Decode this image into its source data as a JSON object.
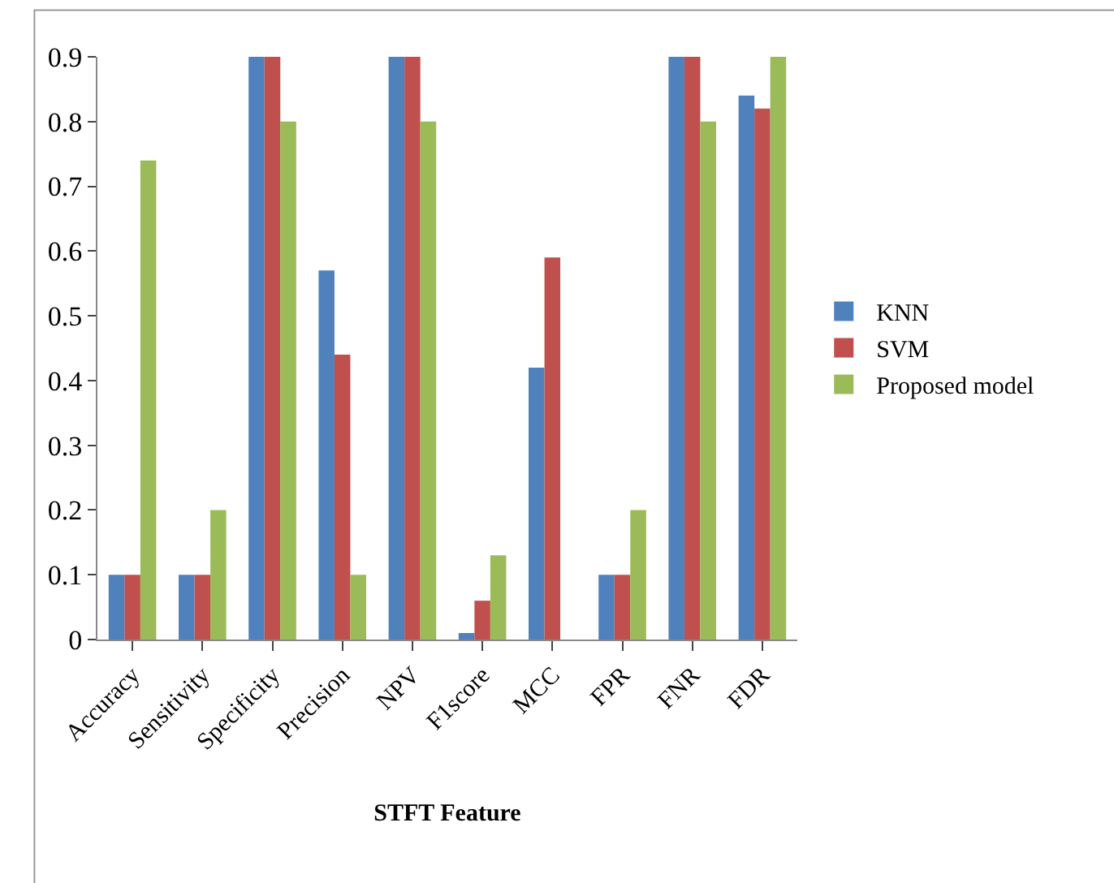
{
  "chart_data": {
    "type": "bar",
    "xlabel": "STFT Feature",
    "categories": [
      "Accuracy",
      "Sensitivity",
      "Specificity",
      "Precision",
      "NPV",
      "F1score",
      "MCC",
      "FPR",
      "FNR",
      "FDR"
    ],
    "series": [
      {
        "name": "KNN",
        "color": "#4f81bd",
        "values": [
          0.1,
          0.1,
          0.9,
          0.57,
          0.9,
          0.01,
          0.42,
          0.1,
          0.9,
          0.84
        ]
      },
      {
        "name": "SVM",
        "color": "#c0504d",
        "values": [
          0.1,
          0.1,
          0.9,
          0.44,
          0.9,
          0.06,
          0.59,
          0.1,
          0.9,
          0.82
        ]
      },
      {
        "name": "Proposed model",
        "color": "#9bbb59",
        "values": [
          0.74,
          0.2,
          0.8,
          0.1,
          0.8,
          0.13,
          0,
          0.2,
          0.8,
          0.9
        ]
      }
    ],
    "ylim": [
      0,
      0.9
    ],
    "yticks": [
      0,
      0.1,
      0.2,
      0.3,
      0.4,
      0.5,
      0.6,
      0.7,
      0.8,
      0.9
    ],
    "legend": "right"
  }
}
